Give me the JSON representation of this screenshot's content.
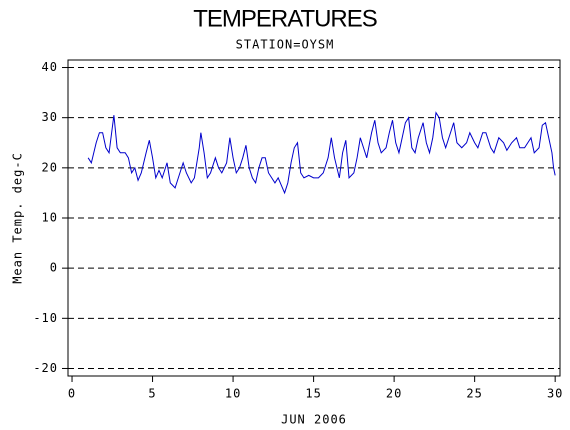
{
  "chart_data": {
    "type": "line",
    "title": "TEMPERATURES",
    "subtitle": "STATION=OYSM",
    "y_label": "Mean Temp. deg-C",
    "x_label": "JUN 2006",
    "xlim": [
      -0.25,
      30.3
    ],
    "ylim": [
      -21.5,
      41.5
    ],
    "xticks": [
      0,
      5,
      10,
      15,
      20,
      25,
      30
    ],
    "yticks": [
      -20,
      -10,
      0,
      10,
      20,
      30,
      40
    ],
    "grid": true,
    "series": [
      {
        "name": "Mean Temp",
        "color": "#0000cc",
        "x": [
          1.0,
          1.2,
          1.5,
          1.7,
          1.9,
          2.1,
          2.3,
          2.6,
          2.8,
          3.0,
          3.3,
          3.5,
          3.7,
          3.9,
          4.1,
          4.3,
          4.6,
          4.8,
          5.0,
          5.2,
          5.4,
          5.6,
          5.9,
          6.1,
          6.4,
          6.6,
          6.9,
          7.1,
          7.4,
          7.6,
          7.9,
          8.0,
          8.2,
          8.4,
          8.6,
          8.9,
          9.1,
          9.3,
          9.6,
          9.8,
          10.0,
          10.2,
          10.4,
          10.6,
          10.8,
          11.0,
          11.2,
          11.4,
          11.6,
          11.8,
          12.0,
          12.2,
          12.4,
          12.6,
          12.8,
          13.0,
          13.2,
          13.4,
          13.6,
          13.8,
          14.0,
          14.2,
          14.4,
          14.7,
          15.0,
          15.3,
          15.6,
          15.9,
          16.1,
          16.3,
          16.6,
          16.8,
          17.0,
          17.2,
          17.5,
          17.7,
          17.9,
          18.1,
          18.3,
          18.6,
          18.8,
          19.0,
          19.2,
          19.5,
          19.7,
          19.9,
          20.1,
          20.3,
          20.5,
          20.7,
          20.9,
          21.1,
          21.3,
          21.5,
          21.8,
          22.0,
          22.2,
          22.4,
          22.6,
          22.8,
          23.0,
          23.2,
          23.5,
          23.7,
          23.9,
          24.2,
          24.5,
          24.7,
          25.0,
          25.2,
          25.5,
          25.7,
          26.0,
          26.2,
          26.5,
          26.8,
          27.0,
          27.3,
          27.6,
          27.8,
          28.1,
          28.3,
          28.5,
          28.7,
          29.0,
          29.2,
          29.4,
          29.6,
          29.8,
          29.9,
          30.0
        ],
        "values": [
          22,
          21,
          25,
          27,
          27,
          24,
          23,
          30.5,
          24,
          23,
          23,
          22,
          19,
          20,
          17.5,
          19,
          23,
          25.5,
          22,
          18,
          19.5,
          18,
          21,
          17,
          16,
          18,
          21,
          19,
          17,
          18,
          24,
          27,
          23,
          18,
          19,
          22,
          20,
          19,
          21,
          26,
          22,
          19,
          20,
          22,
          24.5,
          20,
          18,
          17,
          20,
          22,
          22,
          19,
          18,
          17,
          18,
          16.5,
          15,
          17,
          21,
          24,
          25,
          19,
          18,
          18.5,
          18,
          18,
          19,
          22,
          26,
          22,
          18,
          23,
          25.5,
          18,
          19,
          22,
          26,
          24,
          22,
          27,
          29.5,
          25,
          23,
          24,
          27,
          29.5,
          25,
          23,
          26,
          29,
          30,
          24,
          23,
          26,
          29,
          25,
          23,
          26,
          31,
          30,
          26,
          24,
          27,
          29,
          25,
          24,
          25,
          27,
          25,
          24,
          27,
          27,
          24,
          23,
          26,
          25,
          23.5,
          25,
          26,
          24,
          24,
          25,
          26,
          23,
          24,
          28.5,
          29,
          26,
          23,
          20,
          18.5
        ]
      }
    ]
  }
}
